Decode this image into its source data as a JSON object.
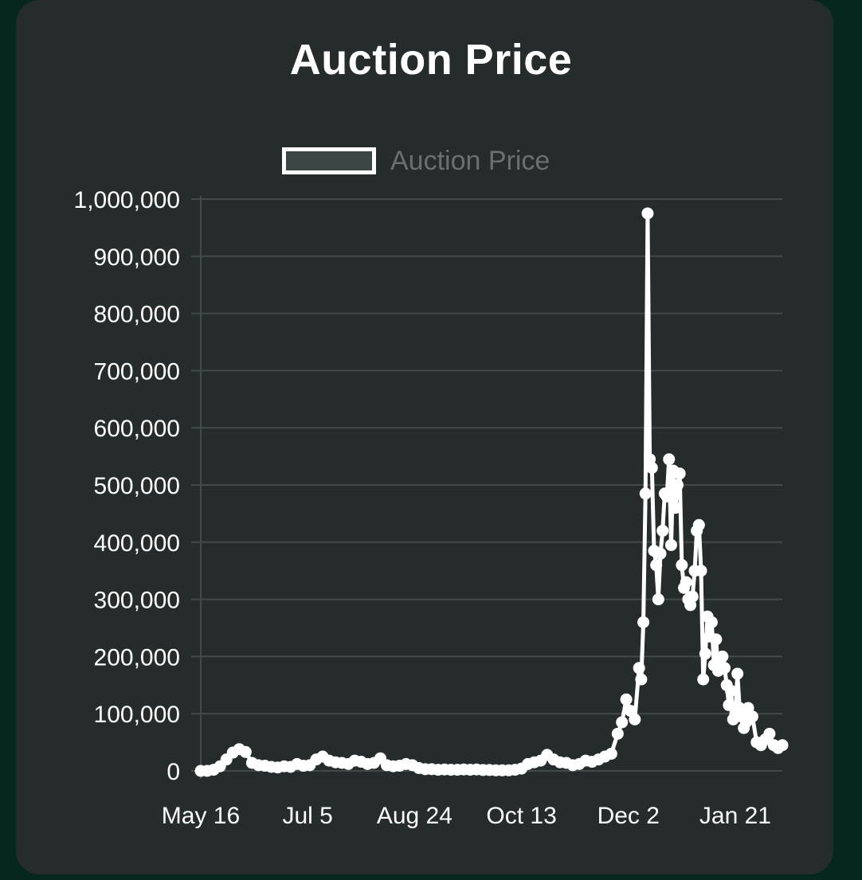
{
  "chart_data": {
    "type": "line",
    "title": "Auction Price",
    "legend": [
      {
        "name": "Auction Price",
        "placement": "top"
      }
    ],
    "series": [
      {
        "name": "Auction Price",
        "color": "#ffffff"
      }
    ],
    "ylim": [
      0,
      1000000
    ],
    "yticks": [
      "0",
      "100,000",
      "200,000",
      "300,000",
      "400,000",
      "500,000",
      "600,000",
      "700,000",
      "800,000",
      "900,000",
      "1,000,000"
    ],
    "yticks_values": [
      0,
      100000,
      200000,
      300000,
      400000,
      500000,
      600000,
      700000,
      800000,
      900000,
      1000000
    ],
    "xticks": [
      "May 16",
      "Jul 5",
      "Aug 24",
      "Oct 13",
      "Dec 2",
      "Jan 21"
    ],
    "grid": true,
    "points": [
      [
        "May 16",
        0
      ],
      [
        "May 19",
        0
      ],
      [
        "May 22",
        2000
      ],
      [
        "May 25",
        8000
      ],
      [
        "May 28",
        20000
      ],
      [
        "May 31",
        32000
      ],
      [
        "Jun 3",
        38000
      ],
      [
        "Jun 6",
        33000
      ],
      [
        "Jun 9",
        14000
      ],
      [
        "Jun 12",
        10000
      ],
      [
        "Jun 15",
        9000
      ],
      [
        "Jun 18",
        7000
      ],
      [
        "Jun 21",
        6000
      ],
      [
        "Jun 24",
        8000
      ],
      [
        "Jun 27",
        7000
      ],
      [
        "Jun 30",
        12000
      ],
      [
        "Jul 3",
        9000
      ],
      [
        "Jul 6",
        10000
      ],
      [
        "Jul 9",
        20000
      ],
      [
        "Jul 12",
        25000
      ],
      [
        "Jul 15",
        18000
      ],
      [
        "Jul 18",
        15000
      ],
      [
        "Jul 21",
        14000
      ],
      [
        "Jul 24",
        12000
      ],
      [
        "Jul 27",
        18000
      ],
      [
        "Jul 30",
        16000
      ],
      [
        "Aug 2",
        12000
      ],
      [
        "Aug 5",
        14000
      ],
      [
        "Aug 8",
        22000
      ],
      [
        "Aug 11",
        10000
      ],
      [
        "Aug 14",
        8000
      ],
      [
        "Aug 17",
        9000
      ],
      [
        "Aug 20",
        12000
      ],
      [
        "Aug 23",
        10000
      ],
      [
        "Aug 26",
        5000
      ],
      [
        "Aug 29",
        3000
      ],
      [
        "Sep 1",
        3000
      ],
      [
        "Sep 4",
        2000
      ],
      [
        "Sep 7",
        2500
      ],
      [
        "Sep 10",
        2000
      ],
      [
        "Sep 13",
        2000
      ],
      [
        "Sep 16",
        2500
      ],
      [
        "Sep 19",
        2000
      ],
      [
        "Sep 22",
        2500
      ],
      [
        "Sep 25",
        1500
      ],
      [
        "Sep 28",
        1500
      ],
      [
        "Oct 1",
        1000
      ],
      [
        "Oct 4",
        1000
      ],
      [
        "Oct 7",
        1000
      ],
      [
        "Oct 10",
        2000
      ],
      [
        "Oct 13",
        4000
      ],
      [
        "Oct 16",
        12000
      ],
      [
        "Oct 19",
        15000
      ],
      [
        "Oct 22",
        18000
      ],
      [
        "Oct 25",
        28000
      ],
      [
        "Oct 28",
        20000
      ],
      [
        "Oct 31",
        15000
      ],
      [
        "Nov 3",
        14000
      ],
      [
        "Nov 6",
        10000
      ],
      [
        "Nov 9",
        12000
      ],
      [
        "Nov 12",
        18000
      ],
      [
        "Nov 15",
        16000
      ],
      [
        "Nov 18",
        20000
      ],
      [
        "Nov 21",
        25000
      ],
      [
        "Nov 24",
        30000
      ],
      [
        "Nov 27",
        65000
      ],
      [
        "Nov 29",
        85000
      ],
      [
        "Dec 1",
        125000
      ],
      [
        "Dec 3",
        105000
      ],
      [
        "Dec 5",
        90000
      ],
      [
        "Dec 7",
        180000
      ],
      [
        "Dec 8",
        160000
      ],
      [
        "Dec 9",
        260000
      ],
      [
        "Dec 10",
        485000
      ],
      [
        "Dec 11",
        975000
      ],
      [
        "Dec 12",
        545000
      ],
      [
        "Dec 13",
        530000
      ],
      [
        "Dec 14",
        385000
      ],
      [
        "Dec 15",
        360000
      ],
      [
        "Dec 16",
        300000
      ],
      [
        "Dec 17",
        380000
      ],
      [
        "Dec 18",
        420000
      ],
      [
        "Dec 19",
        485000
      ],
      [
        "Dec 20",
        480000
      ],
      [
        "Dec 21",
        545000
      ],
      [
        "Dec 22",
        395000
      ],
      [
        "Dec 23",
        525000
      ],
      [
        "Dec 24",
        460000
      ],
      [
        "Dec 25",
        500000
      ],
      [
        "Dec 26",
        520000
      ],
      [
        "Dec 27",
        360000
      ],
      [
        "Dec 28",
        320000
      ],
      [
        "Dec 29",
        330000
      ],
      [
        "Dec 30",
        300000
      ],
      [
        "Dec 31",
        290000
      ],
      [
        "Jan 1",
        305000
      ],
      [
        "Jan 2",
        350000
      ],
      [
        "Jan 3",
        420000
      ],
      [
        "Jan 4",
        430000
      ],
      [
        "Jan 5",
        350000
      ],
      [
        "Jan 6",
        160000
      ],
      [
        "Jan 7",
        205000
      ],
      [
        "Jan 8",
        270000
      ],
      [
        "Jan 9",
        235000
      ],
      [
        "Jan 10",
        260000
      ],
      [
        "Jan 11",
        185000
      ],
      [
        "Jan 12",
        230000
      ],
      [
        "Jan 13",
        175000
      ],
      [
        "Jan 14",
        195000
      ],
      [
        "Jan 15",
        200000
      ],
      [
        "Jan 16",
        180000
      ],
      [
        "Jan 17",
        150000
      ],
      [
        "Jan 18",
        115000
      ],
      [
        "Jan 19",
        140000
      ],
      [
        "Jan 20",
        90000
      ],
      [
        "Jan 21",
        100000
      ],
      [
        "Jan 22",
        170000
      ],
      [
        "Jan 23",
        110000
      ],
      [
        "Jan 24",
        95000
      ],
      [
        "Jan 25",
        75000
      ],
      [
        "Jan 26",
        85000
      ],
      [
        "Jan 27",
        110000
      ],
      [
        "Jan 29",
        95000
      ],
      [
        "Jan 31",
        50000
      ],
      [
        "Feb 2",
        45000
      ],
      [
        "Feb 4",
        55000
      ],
      [
        "Feb 6",
        65000
      ],
      [
        "Feb 8",
        45000
      ],
      [
        "Feb 10",
        40000
      ],
      [
        "Feb 12",
        45000
      ]
    ]
  }
}
